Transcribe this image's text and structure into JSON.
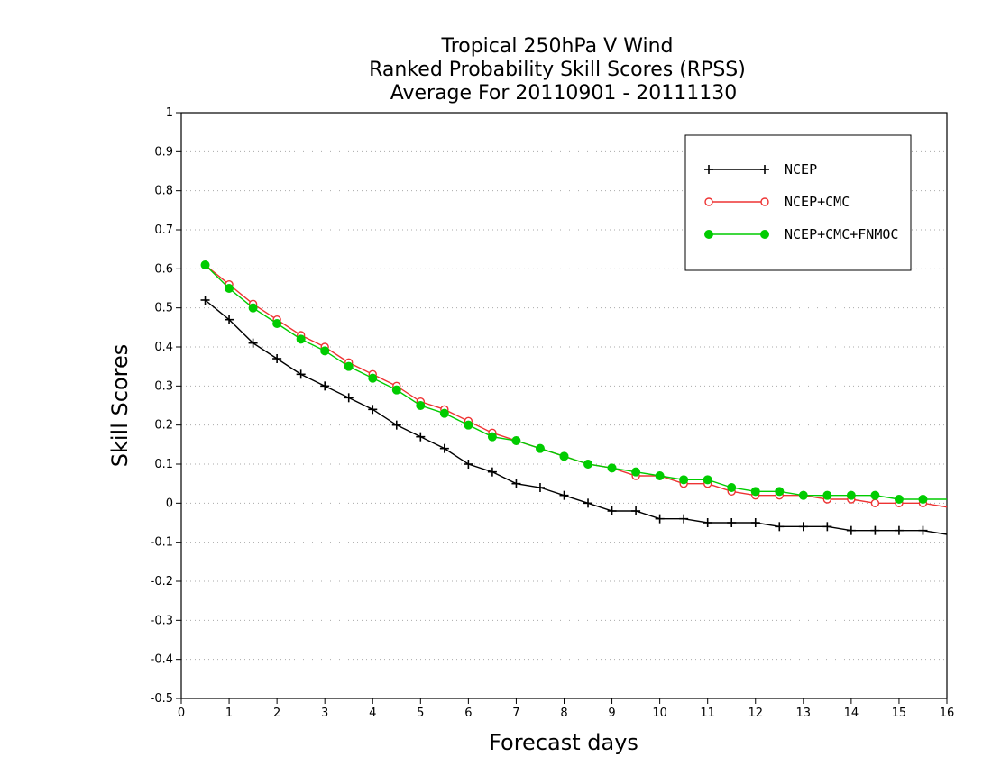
{
  "chart_data": {
    "type": "line",
    "title_lines": [
      "Tropical 250hPa V Wind",
      "Ranked Probability Skill Scores (RPSS)",
      "Average For 20110901 - 20111130"
    ],
    "xlabel": "Forecast days",
    "ylabel": "Skill Scores",
    "xlim": [
      0,
      16
    ],
    "ylim": [
      -0.5,
      1
    ],
    "xticks": [
      "0",
      "1",
      "2",
      "3",
      "4",
      "5",
      "6",
      "7",
      "8",
      "9",
      "10",
      "11",
      "12",
      "13",
      "14",
      "15",
      "16"
    ],
    "yticks": [
      "-0.5",
      "-0.4",
      "-0.3",
      "-0.2",
      "-0.1",
      "0",
      "0.1",
      "0.2",
      "0.3",
      "0.4",
      "0.5",
      "0.6",
      "0.7",
      "0.8",
      "0.9",
      "1"
    ],
    "grid": "horizontal-dotted",
    "legend_position": "top-right",
    "x": [
      0.5,
      1,
      1.5,
      2,
      2.5,
      3,
      3.5,
      4,
      4.5,
      5,
      5.5,
      6,
      6.5,
      7,
      7.5,
      8,
      8.5,
      9,
      9.5,
      10,
      10.5,
      11,
      11.5,
      12,
      12.5,
      13,
      13.5,
      14,
      14.5,
      15,
      15.5,
      16
    ],
    "series": [
      {
        "name": "NCEP",
        "color": "#000000",
        "marker": "plus",
        "values": [
          0.52,
          0.47,
          0.41,
          0.37,
          0.33,
          0.3,
          0.27,
          0.24,
          0.2,
          0.17,
          0.14,
          0.1,
          0.08,
          0.05,
          0.04,
          0.02,
          0.0,
          -0.02,
          -0.02,
          -0.04,
          -0.04,
          -0.05,
          -0.05,
          -0.05,
          -0.06,
          -0.06,
          -0.06,
          -0.07,
          -0.07,
          -0.07,
          -0.07,
          -0.08
        ]
      },
      {
        "name": "NCEP+CMC",
        "color": "#ee3333",
        "marker": "open-circle",
        "values": [
          0.61,
          0.56,
          0.51,
          0.47,
          0.43,
          0.4,
          0.36,
          0.33,
          0.3,
          0.26,
          0.24,
          0.21,
          0.18,
          0.16,
          0.14,
          0.12,
          0.1,
          0.09,
          0.07,
          0.07,
          0.05,
          0.05,
          0.03,
          0.02,
          0.02,
          0.02,
          0.01,
          0.01,
          0.0,
          0.0,
          0.0,
          -0.01
        ]
      },
      {
        "name": "NCEP+CMC+FNMOC",
        "color": "#00cc00",
        "marker": "filled-circle",
        "values": [
          0.61,
          0.55,
          0.5,
          0.46,
          0.42,
          0.39,
          0.35,
          0.32,
          0.29,
          0.25,
          0.23,
          0.2,
          0.17,
          0.16,
          0.14,
          0.12,
          0.1,
          0.09,
          0.08,
          0.07,
          0.06,
          0.06,
          0.04,
          0.03,
          0.03,
          0.02,
          0.02,
          0.02,
          0.02,
          0.01,
          0.01,
          0.01
        ]
      }
    ]
  }
}
